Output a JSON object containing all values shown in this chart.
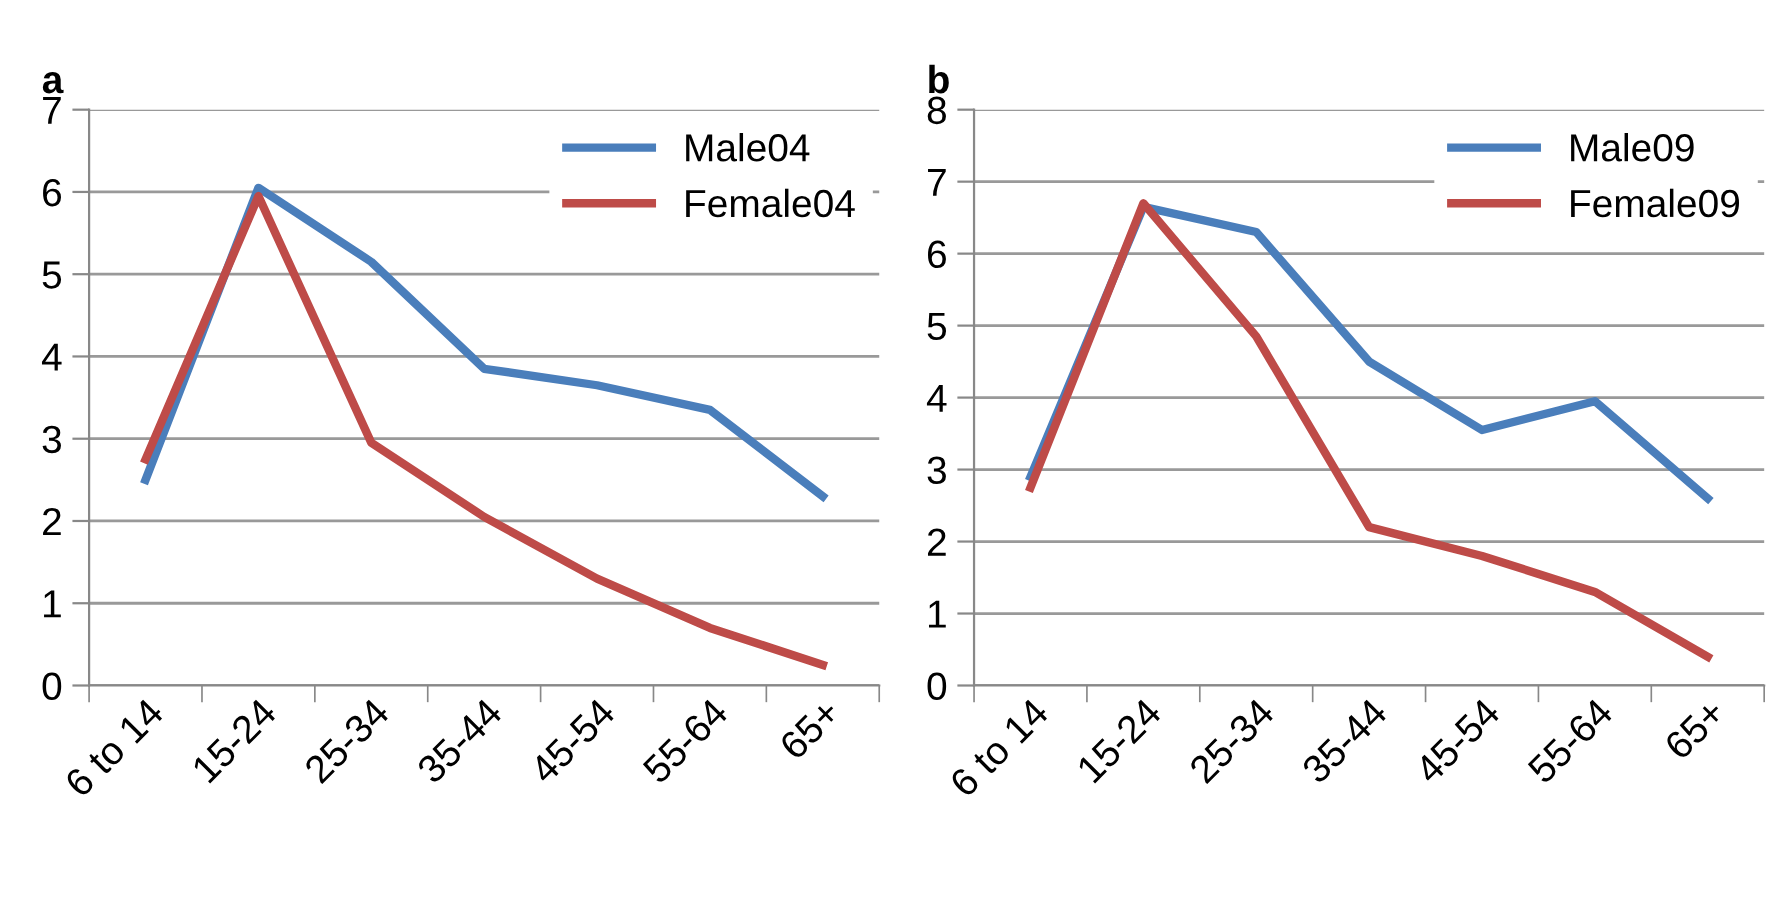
{
  "chart_data": [
    {
      "type": "line",
      "title": "a",
      "categories": [
        "6 to 14",
        "15-24",
        "25-34",
        "35-44",
        "45-54",
        "55-64",
        "65+"
      ],
      "series": [
        {
          "name": "Male04",
          "color": "#4a7ebb",
          "values": [
            2.5,
            6.05,
            5.15,
            3.85,
            3.65,
            3.35,
            2.3
          ]
        },
        {
          "name": "Female04",
          "color": "#be4b48",
          "values": [
            2.75,
            5.95,
            2.95,
            2.05,
            1.3,
            0.7,
            0.25
          ]
        }
      ],
      "ylim": [
        0,
        7
      ],
      "yticks": [
        0,
        1,
        2,
        3,
        4,
        5,
        6,
        7
      ],
      "grid": "y",
      "legend": "top right",
      "marker": "none",
      "line_style": "solid"
    },
    {
      "type": "line",
      "title": "b",
      "categories": [
        "6 to 14",
        "15-24",
        "25-34",
        "35-44",
        "45-54",
        "55-64",
        "65+"
      ],
      "series": [
        {
          "name": "Male09",
          "color": "#4a7ebb",
          "values": [
            2.9,
            6.65,
            6.3,
            4.5,
            3.55,
            3.95,
            2.6
          ]
        },
        {
          "name": "Female09",
          "color": "#be4b48",
          "values": [
            2.75,
            6.7,
            4.85,
            2.2,
            1.8,
            1.3,
            0.4
          ]
        }
      ],
      "ylim": [
        0,
        8
      ],
      "yticks": [
        0,
        1,
        2,
        3,
        4,
        5,
        6,
        7,
        8
      ],
      "grid": "y",
      "legend": "top right",
      "marker": "none",
      "line_style": "solid"
    }
  ]
}
